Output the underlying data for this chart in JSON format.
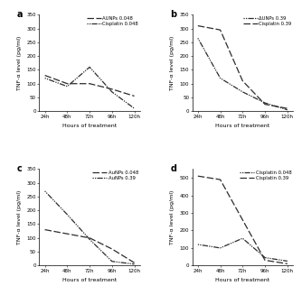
{
  "x": [
    24,
    48,
    72,
    96,
    120
  ],
  "panel_a": {
    "label": "a",
    "line1_label": "AUNPs 0.048",
    "line1_style": "dashed",
    "line1_y": [
      130,
      100,
      100,
      80,
      55
    ],
    "line2_label": "Cisplatin 0.048",
    "line2_style": "dotted",
    "line2_y": [
      120,
      90,
      160,
      70,
      10
    ],
    "ylim": [
      0,
      350
    ],
    "yticks": [
      0,
      50,
      100,
      150,
      200,
      250,
      300,
      350
    ],
    "ylabel": "TNF-α level (pg/ml)"
  },
  "panel_b": {
    "label": "b",
    "line1_label": "ΔUNPs 0.39",
    "line1_style": "dotted",
    "line1_y": [
      265,
      120,
      70,
      30,
      5
    ],
    "line2_label": "Cisplatin 0.39",
    "line2_style": "dashed",
    "line2_y": [
      310,
      295,
      110,
      25,
      10
    ],
    "ylim": [
      0,
      350
    ],
    "yticks": [
      0,
      50,
      100,
      150,
      200,
      250,
      300,
      350
    ],
    "ylabel": "TNF-α level (pg/ml)"
  },
  "panel_c": {
    "label": "c",
    "line1_label": "AuNPs 0.048",
    "line1_style": "dashed",
    "line1_y": [
      130,
      115,
      100,
      60,
      10
    ],
    "line2_label": "AuNPs 0.39",
    "line2_style": "dotted",
    "line2_y": [
      270,
      185,
      95,
      15,
      5
    ],
    "ylim": [
      0,
      350
    ],
    "yticks": [
      0,
      50,
      100,
      150,
      200,
      250,
      300,
      350
    ],
    "ylabel": "TNF-α level (pg/ml)"
  },
  "panel_d": {
    "label": "d",
    "line1_label": "Cisplatin 0.048",
    "line1_style": "dotted",
    "line1_y": [
      120,
      100,
      155,
      45,
      25
    ],
    "line2_label": "Cisplatin 0.39",
    "line2_style": "dashed",
    "line2_y": [
      510,
      490,
      260,
      30,
      10
    ],
    "ylim": [
      0,
      550
    ],
    "yticks": [
      0,
      100,
      200,
      300,
      400,
      500
    ],
    "ylabel": "TNF-α level (pg/ml)"
  },
  "xlabel": "Hours of treatment",
  "xtick_labels": [
    "24h",
    "48h",
    "72h",
    "96h",
    "120h"
  ],
  "line_color": "#2c2c2c",
  "fontsize_label": 4.5,
  "fontsize_tick": 4.0,
  "fontsize_legend": 3.8,
  "fontsize_panel_label": 7,
  "line_width": 0.9
}
